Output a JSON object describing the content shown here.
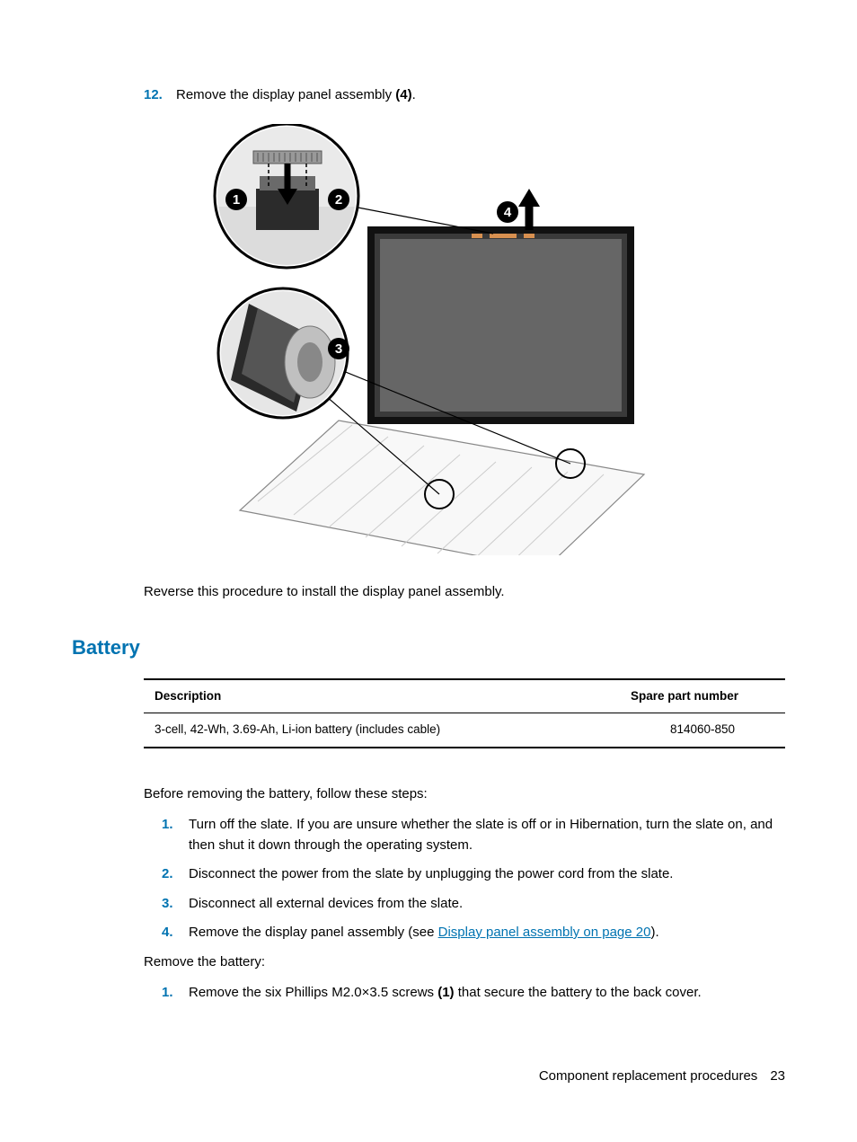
{
  "colors": {
    "accent": "#0073b1",
    "text": "#000000",
    "background": "#ffffff",
    "table_border": "#000000"
  },
  "top_step": {
    "number": "12.",
    "text_before": "Remove the display panel assembly ",
    "bold_ref": "(4)",
    "text_after": "."
  },
  "diagram": {
    "callouts": [
      "1",
      "2",
      "3",
      "4"
    ]
  },
  "reverse_text": "Reverse this procedure to install the display panel assembly.",
  "section": {
    "title": "Battery"
  },
  "parts_table": {
    "columns": [
      "Description",
      "Spare part number"
    ],
    "rows": [
      [
        "3-cell, 42-Wh, 3.69-Ah, Li-ion battery (includes cable)",
        "814060-850"
      ]
    ]
  },
  "pre_steps_intro": "Before removing the battery, follow these steps:",
  "pre_steps": [
    {
      "num": "1.",
      "parts": [
        {
          "t": "Turn off the slate. If you are unsure whether the slate is off or in Hibernation, turn the slate on, and then shut it down through the operating system."
        }
      ]
    },
    {
      "num": "2.",
      "parts": [
        {
          "t": "Disconnect the power from the slate by unplugging the power cord from the slate."
        }
      ]
    },
    {
      "num": "3.",
      "parts": [
        {
          "t": "Disconnect all external devices from the slate."
        }
      ]
    },
    {
      "num": "4.",
      "parts": [
        {
          "t": "Remove the display panel assembly (see "
        },
        {
          "t": "Display panel assembly on page 20",
          "link": true
        },
        {
          "t": ")."
        }
      ]
    }
  ],
  "remove_intro": "Remove the battery:",
  "remove_steps": [
    {
      "num": "1.",
      "parts": [
        {
          "t": "Remove the six Phillips M2.0×3.5 screws "
        },
        {
          "t": "(1)",
          "bold": true
        },
        {
          "t": " that secure the battery to the back cover."
        }
      ]
    }
  ],
  "footer": {
    "section_title": "Component replacement procedures",
    "page_number": "23"
  }
}
